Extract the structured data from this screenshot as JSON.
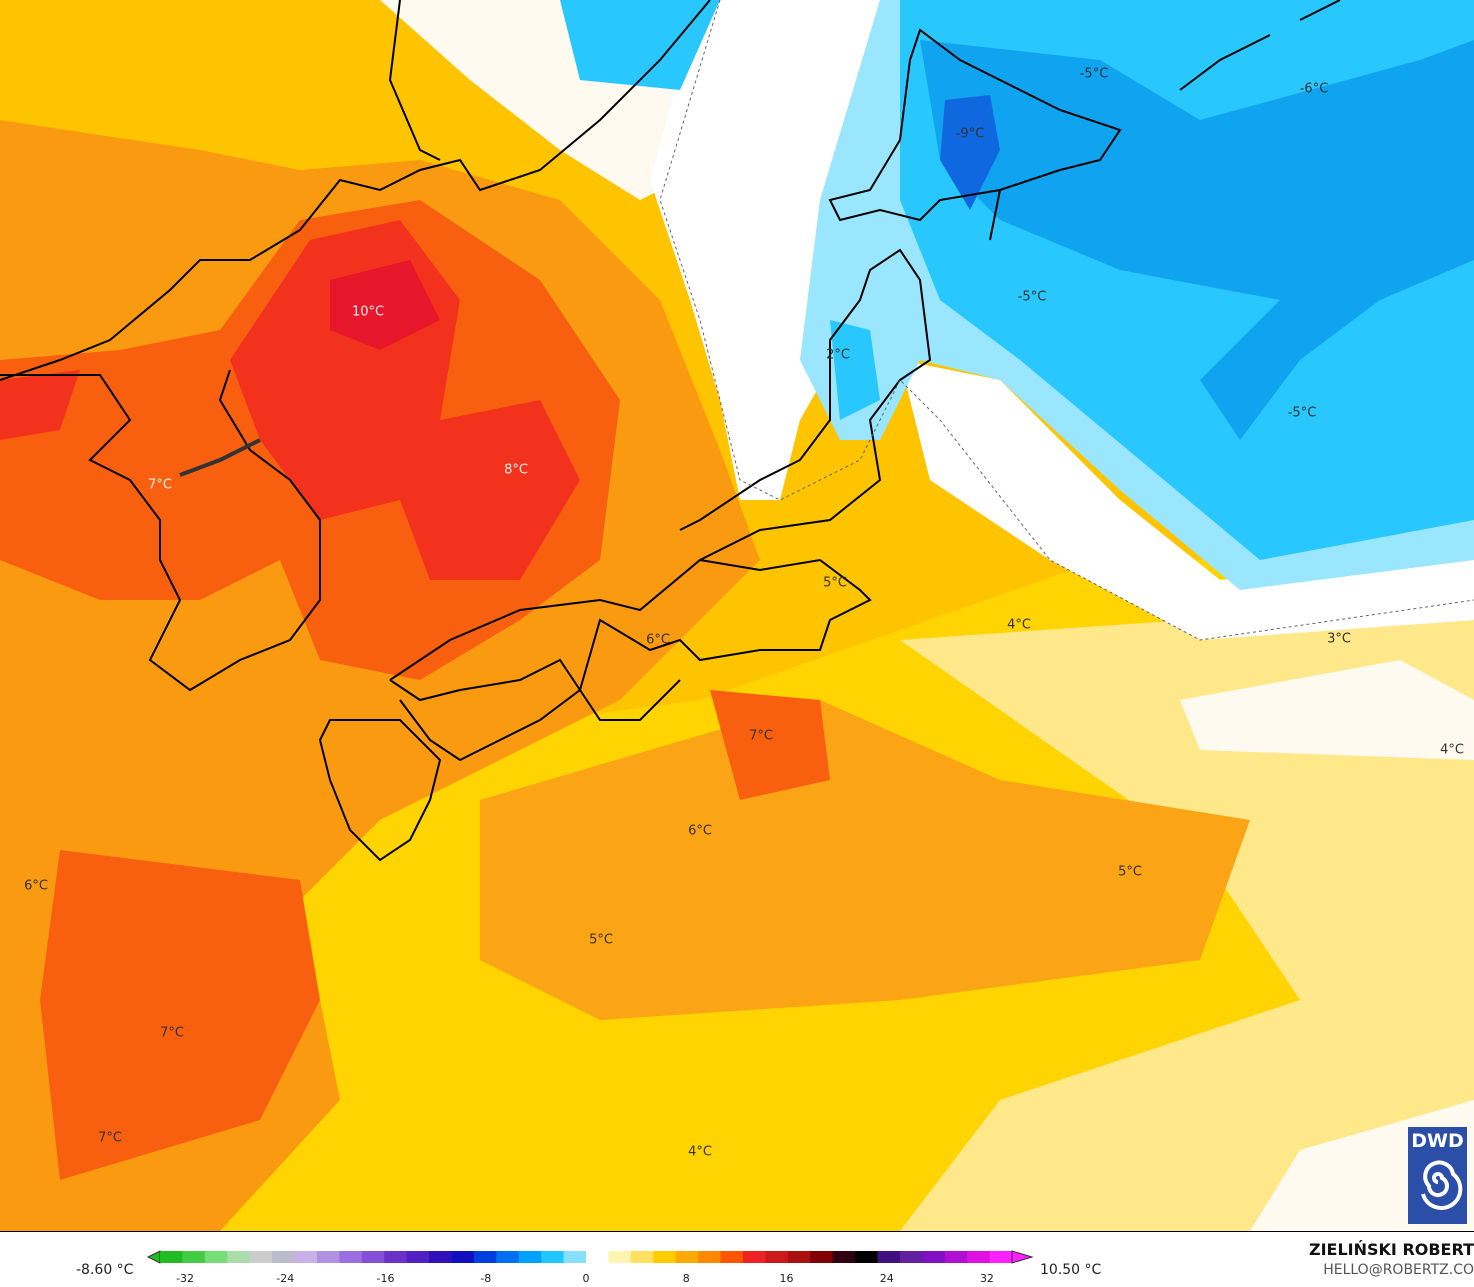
{
  "map": {
    "labels": [
      "10°C",
      "8°C",
      "7°C",
      "2°C",
      "-5°C",
      "-6°C",
      "-9°C",
      "-5°C",
      "-5°C",
      "5°C",
      "4°C",
      "3°C",
      "6°C",
      "7°C",
      "4°C",
      "6°C",
      "5°C",
      "6°C",
      "5°C",
      "7°C",
      "7°C",
      "4°C"
    ],
    "colors": {
      "land_outline": "#000000",
      "warm_red": "#f0301c",
      "orange": "#fa8a10",
      "yellow": "#ffd400",
      "pale_yellow": "#fff2b0",
      "cold_blue": "#28c8ff",
      "deep_blue": "#1070e8"
    }
  },
  "logo": {
    "text": "DWD"
  },
  "legend": {
    "min_label": "-8.60 °C",
    "max_label": "10.50 °C",
    "ticks": [
      "-32",
      "-24",
      "-16",
      "-8",
      "0",
      "8",
      "16",
      "24",
      "32"
    ],
    "range": [
      -34,
      34
    ],
    "colors": [
      "#22bb22",
      "#44cc44",
      "#77dd77",
      "#aaddaa",
      "#cccccc",
      "#bbbbcc",
      "#c8b0e8",
      "#b090e0",
      "#9a6ee0",
      "#8450d8",
      "#6a30c8",
      "#5020c0",
      "#3010b8",
      "#1010c0",
      "#0040e0",
      "#0070f0",
      "#00a0ff",
      "#20c8ff",
      "#88e0ff",
      "#ffffff",
      "#fff4b0",
      "#ffe060",
      "#ffcc00",
      "#ffaa00",
      "#ff8800",
      "#ff5500",
      "#ee2222",
      "#cc1a1a",
      "#aa1010",
      "#800000",
      "#300010",
      "#000000",
      "#401080",
      "#6020a0",
      "#8010c0",
      "#b010d0",
      "#e010e0",
      "#ff20ff"
    ]
  },
  "credit": {
    "author": "ZIELIŃSKI ROBERT",
    "email": "HELLO@ROBERTZ.CO"
  }
}
